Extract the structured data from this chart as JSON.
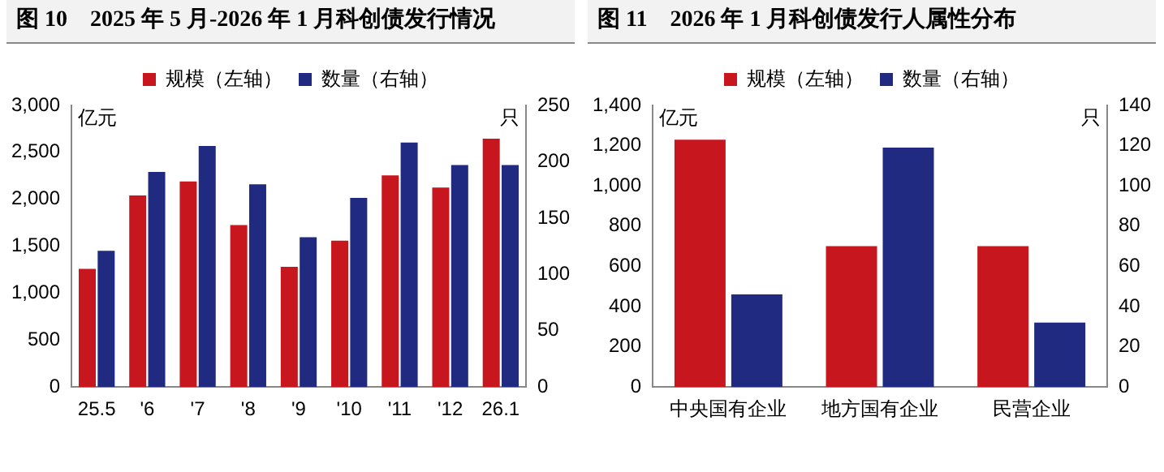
{
  "chart_data": [
    {
      "type": "bar",
      "title": "图 10　2025 年 5 月-2026 年 1 月科创债发行情况",
      "categories": [
        "25.5",
        "'6",
        "'7",
        "'8",
        "'9",
        "'10",
        "'11",
        "'12",
        "26.1"
      ],
      "series": [
        {
          "name": "规模（左轴）",
          "color": "#c8161e",
          "values": [
            1260,
            2040,
            2190,
            1725,
            1280,
            1560,
            2255,
            2125,
            2645
          ]
        },
        {
          "name": "数量（右轴）",
          "color": "#1f2a80",
          "axis": "y2",
          "values": [
            121,
            191,
            214,
            180,
            133,
            168,
            217,
            197,
            197
          ]
        }
      ],
      "ylabel": "亿元",
      "y2label": "只",
      "ylim": [
        0,
        3000
      ],
      "yticks": [
        0,
        500,
        {
          "value": 1000,
          "label": "1,000"
        },
        {
          "value": 1500,
          "label": "1,500"
        },
        {
          "value": 2000,
          "label": "2,000"
        },
        {
          "value": 2500,
          "label": "2,500"
        },
        {
          "value": 3000,
          "label": "3,000"
        }
      ],
      "y2lim": [
        0,
        250
      ],
      "y2ticks": [
        0,
        50,
        100,
        150,
        200,
        250
      ],
      "legend": "top",
      "grid": false
    },
    {
      "type": "bar",
      "title": "图 11　2026 年 1 月科创债发行人属性分布",
      "categories": [
        "中央国有企业",
        "地方国有企业",
        "民营企业"
      ],
      "series": [
        {
          "name": "规模（左轴）",
          "color": "#c8161e",
          "values": [
            1230,
            700,
            700
          ]
        },
        {
          "name": "数量（右轴）",
          "color": "#1f2a80",
          "axis": "y2",
          "values": [
            46,
            119,
            32
          ]
        }
      ],
      "ylabel": "亿元",
      "y2label": "只",
      "ylim": [
        0,
        1400
      ],
      "yticks": [
        0,
        200,
        400,
        600,
        800,
        {
          "value": 1000,
          "label": "1,000"
        },
        {
          "value": 1200,
          "label": "1,200"
        },
        {
          "value": 1400,
          "label": "1,400"
        }
      ],
      "y2lim": [
        0,
        140
      ],
      "y2ticks": [
        0,
        20,
        40,
        60,
        80,
        100,
        120,
        140
      ],
      "legend": "top",
      "grid": false
    }
  ]
}
